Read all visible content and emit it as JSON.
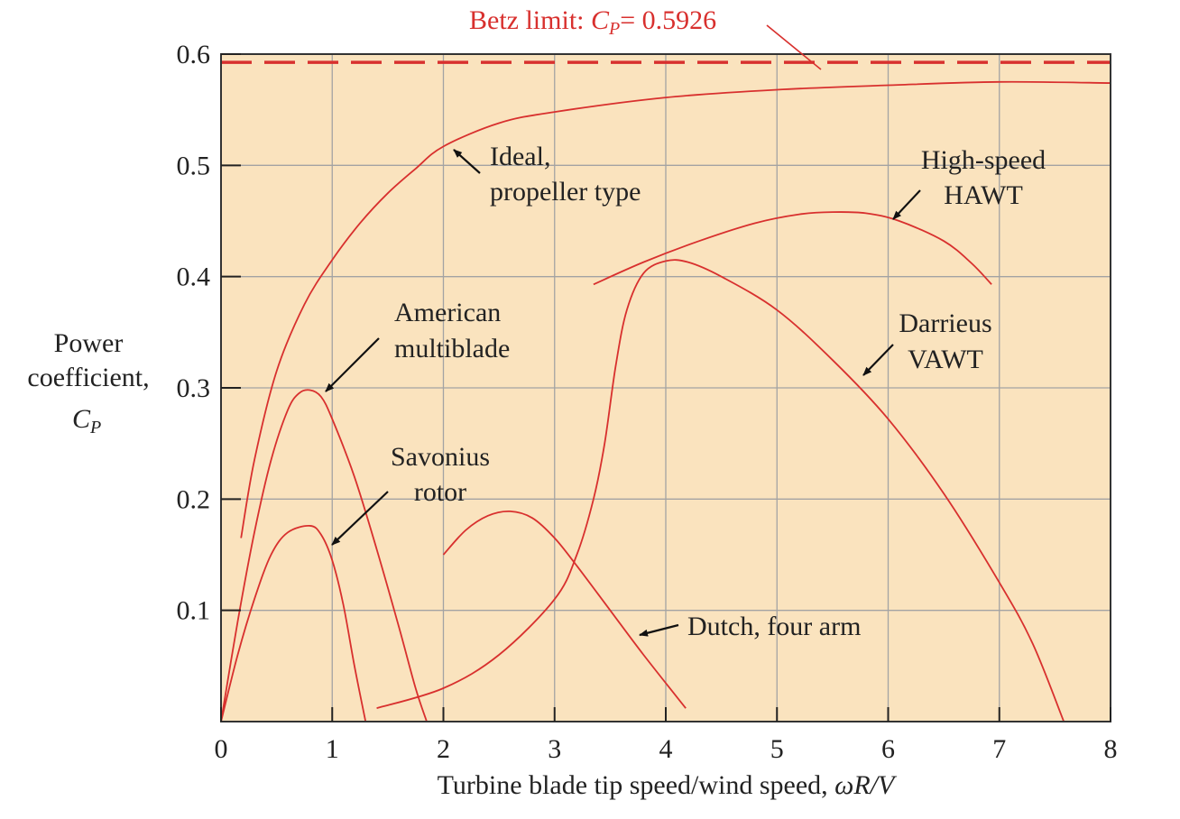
{
  "chart_data": {
    "type": "line",
    "xlabel_prefix": "Turbine blade tip speed/wind speed, ",
    "xlabel_math": "ωR/V",
    "ylabel_lines": [
      "Power",
      "coefficient,"
    ],
    "ylabel_symbol": "C",
    "ylabel_subscript": "P",
    "xlim": [
      0,
      8
    ],
    "ylim": [
      0,
      0.6
    ],
    "x_ticks": [
      0,
      1,
      2,
      3,
      4,
      5,
      6,
      7,
      8
    ],
    "y_ticks": [
      0.1,
      0.2,
      0.3,
      0.4,
      0.5,
      0.6
    ],
    "x_tick_labels": [
      "0",
      "1",
      "2",
      "3",
      "4",
      "5",
      "6",
      "7",
      "8"
    ],
    "y_tick_labels": [
      "0.1",
      "0.2",
      "0.3",
      "0.4",
      "0.5",
      "0.6"
    ],
    "grid": true,
    "plot_background": "#fae3be",
    "curve_color": "#d8302e",
    "betz": {
      "value": 0.5926,
      "label_prefix": "Betz limit: ",
      "label_symbol": "C",
      "label_subscript": "P",
      "label_suffix": "= 0.5926",
      "line_style": "dashed"
    },
    "series": [
      {
        "name": "Ideal, propeller type",
        "points": [
          [
            0.18,
            0.165
          ],
          [
            0.3,
            0.235
          ],
          [
            0.5,
            0.315
          ],
          [
            0.75,
            0.375
          ],
          [
            1.0,
            0.415
          ],
          [
            1.25,
            0.448
          ],
          [
            1.5,
            0.475
          ],
          [
            1.75,
            0.497
          ],
          [
            2.0,
            0.517
          ],
          [
            2.5,
            0.538
          ],
          [
            3.0,
            0.548
          ],
          [
            4.0,
            0.561
          ],
          [
            5.0,
            0.568
          ],
          [
            6.0,
            0.572
          ],
          [
            7.0,
            0.575
          ],
          [
            8.0,
            0.574
          ]
        ]
      },
      {
        "name": "High-speed HAWT",
        "points": [
          [
            3.35,
            0.393
          ],
          [
            3.8,
            0.413
          ],
          [
            4.3,
            0.432
          ],
          [
            4.8,
            0.448
          ],
          [
            5.2,
            0.456
          ],
          [
            5.5,
            0.458
          ],
          [
            5.8,
            0.457
          ],
          [
            6.1,
            0.45
          ],
          [
            6.5,
            0.432
          ],
          [
            6.75,
            0.412
          ],
          [
            6.93,
            0.393
          ]
        ]
      },
      {
        "name": "Darrieus VAWT",
        "points": [
          [
            1.4,
            0.012
          ],
          [
            2.0,
            0.03
          ],
          [
            2.5,
            0.06
          ],
          [
            3.0,
            0.11
          ],
          [
            3.2,
            0.15
          ],
          [
            3.35,
            0.2
          ],
          [
            3.45,
            0.25
          ],
          [
            3.55,
            0.32
          ],
          [
            3.65,
            0.37
          ],
          [
            3.8,
            0.403
          ],
          [
            4.0,
            0.414
          ],
          [
            4.2,
            0.413
          ],
          [
            4.5,
            0.4
          ],
          [
            5.0,
            0.37
          ],
          [
            5.5,
            0.325
          ],
          [
            6.0,
            0.272
          ],
          [
            6.5,
            0.205
          ],
          [
            7.0,
            0.125
          ],
          [
            7.3,
            0.07
          ],
          [
            7.58,
            0.0
          ]
        ]
      },
      {
        "name": "American multiblade",
        "points": [
          [
            0.0,
            0.0
          ],
          [
            0.15,
            0.09
          ],
          [
            0.3,
            0.17
          ],
          [
            0.45,
            0.235
          ],
          [
            0.6,
            0.28
          ],
          [
            0.7,
            0.295
          ],
          [
            0.8,
            0.298
          ],
          [
            0.9,
            0.292
          ],
          [
            1.0,
            0.272
          ],
          [
            1.2,
            0.22
          ],
          [
            1.4,
            0.155
          ],
          [
            1.6,
            0.085
          ],
          [
            1.75,
            0.03
          ],
          [
            1.85,
            0.0
          ]
        ]
      },
      {
        "name": "Savonius rotor",
        "points": [
          [
            0.0,
            0.0
          ],
          [
            0.15,
            0.06
          ],
          [
            0.3,
            0.11
          ],
          [
            0.45,
            0.15
          ],
          [
            0.6,
            0.17
          ],
          [
            0.8,
            0.176
          ],
          [
            0.9,
            0.168
          ],
          [
            1.0,
            0.145
          ],
          [
            1.1,
            0.105
          ],
          [
            1.2,
            0.05
          ],
          [
            1.3,
            0.0
          ]
        ]
      },
      {
        "name": "Dutch, four arm",
        "points": [
          [
            2.0,
            0.15
          ],
          [
            2.2,
            0.172
          ],
          [
            2.4,
            0.185
          ],
          [
            2.6,
            0.189
          ],
          [
            2.8,
            0.183
          ],
          [
            3.0,
            0.165
          ],
          [
            3.2,
            0.14
          ],
          [
            3.5,
            0.1
          ],
          [
            3.8,
            0.06
          ],
          [
            4.18,
            0.012
          ]
        ]
      }
    ],
    "annotations": {
      "ideal": [
        "Ideal,",
        "propeller type"
      ],
      "hawt": [
        "High-speed",
        "HAWT"
      ],
      "darrieus": [
        "Darrieus",
        "VAWT"
      ],
      "american": [
        "American",
        "multiblade"
      ],
      "savonius": [
        "Savonius",
        "rotor"
      ],
      "dutch": [
        "Dutch, four arm"
      ]
    }
  }
}
